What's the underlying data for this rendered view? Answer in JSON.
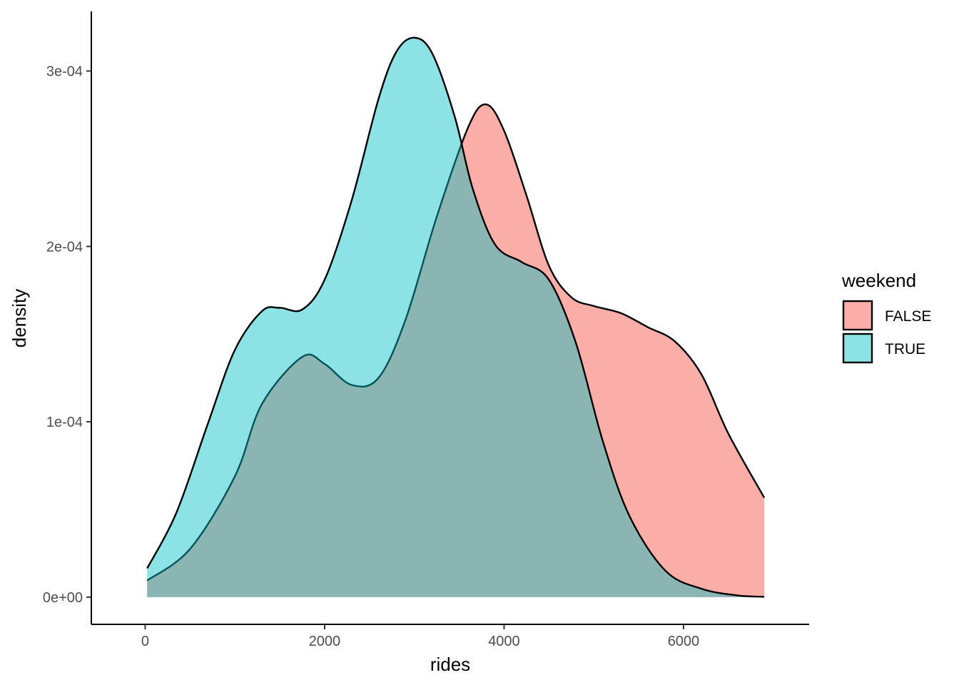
{
  "chart_data": {
    "type": "area",
    "subtype": "density",
    "title": "",
    "xlabel": "rides",
    "ylabel": "density",
    "xlim": [
      -600,
      7400
    ],
    "ylim": [
      -1.55e-05,
      0.000334
    ],
    "x_ticks": [
      0,
      2000,
      4000,
      6000
    ],
    "x_tick_labels": [
      "0",
      "2000",
      "4000",
      "6000"
    ],
    "y_ticks": [
      0,
      0.0001,
      0.0002,
      0.0003
    ],
    "y_tick_labels": [
      "0e+00",
      "1e-04",
      "2e-04",
      "3e-04"
    ],
    "grid": false,
    "legend": {
      "title": "weekend",
      "position": "right"
    },
    "series": [
      {
        "name": "FALSE",
        "color": "#F8766D",
        "fill_opacity": 0.6,
        "points": [
          [
            22,
            9.5e-06
          ],
          [
            500,
            2.75e-05
          ],
          [
            1000,
            6.89e-05
          ],
          [
            1300,
            0.00011
          ],
          [
            1750,
            0.000137
          ],
          [
            2000,
            0.000133
          ],
          [
            2300,
            0.000121
          ],
          [
            2600,
            0.000125
          ],
          [
            2900,
            0.000158
          ],
          [
            3250,
            0.000217
          ],
          [
            3600,
            0.000268
          ],
          [
            3800,
            0.000281
          ],
          [
            4000,
            0.000266
          ],
          [
            4250,
            0.000229
          ],
          [
            4500,
            0.000189
          ],
          [
            4750,
            0.000171
          ],
          [
            5000,
            0.000166
          ],
          [
            5300,
            0.000162
          ],
          [
            5600,
            0.000154
          ],
          [
            5900,
            0.000146
          ],
          [
            6200,
            0.000127
          ],
          [
            6500,
            9.32e-05
          ],
          [
            6900,
            5.67e-05
          ]
        ]
      },
      {
        "name": "TRUE",
        "color": "#00BFC4",
        "fill_opacity": 0.45,
        "points": [
          [
            22,
            1.64e-05
          ],
          [
            350,
            4.84e-05
          ],
          [
            700,
            9.91e-05
          ],
          [
            1000,
            0.000141
          ],
          [
            1300,
            0.000163
          ],
          [
            1500,
            0.000165
          ],
          [
            1750,
            0.000164
          ],
          [
            2000,
            0.000181
          ],
          [
            2300,
            0.000226
          ],
          [
            2600,
            0.000284
          ],
          [
            2800,
            0.000311
          ],
          [
            3000,
            0.000319
          ],
          [
            3200,
            0.00031
          ],
          [
            3450,
            0.000274
          ],
          [
            3650,
            0.000233
          ],
          [
            3900,
            0.000201
          ],
          [
            4200,
            0.000191
          ],
          [
            4500,
            0.000181
          ],
          [
            4800,
            0.000145
          ],
          [
            5100,
            8.9e-05
          ],
          [
            5400,
            4.6e-05
          ],
          [
            5800,
            1.5e-05
          ],
          [
            6200,
            4.8e-06
          ],
          [
            6600,
            1e-06
          ],
          [
            6900,
            2.4e-07
          ]
        ]
      }
    ]
  }
}
